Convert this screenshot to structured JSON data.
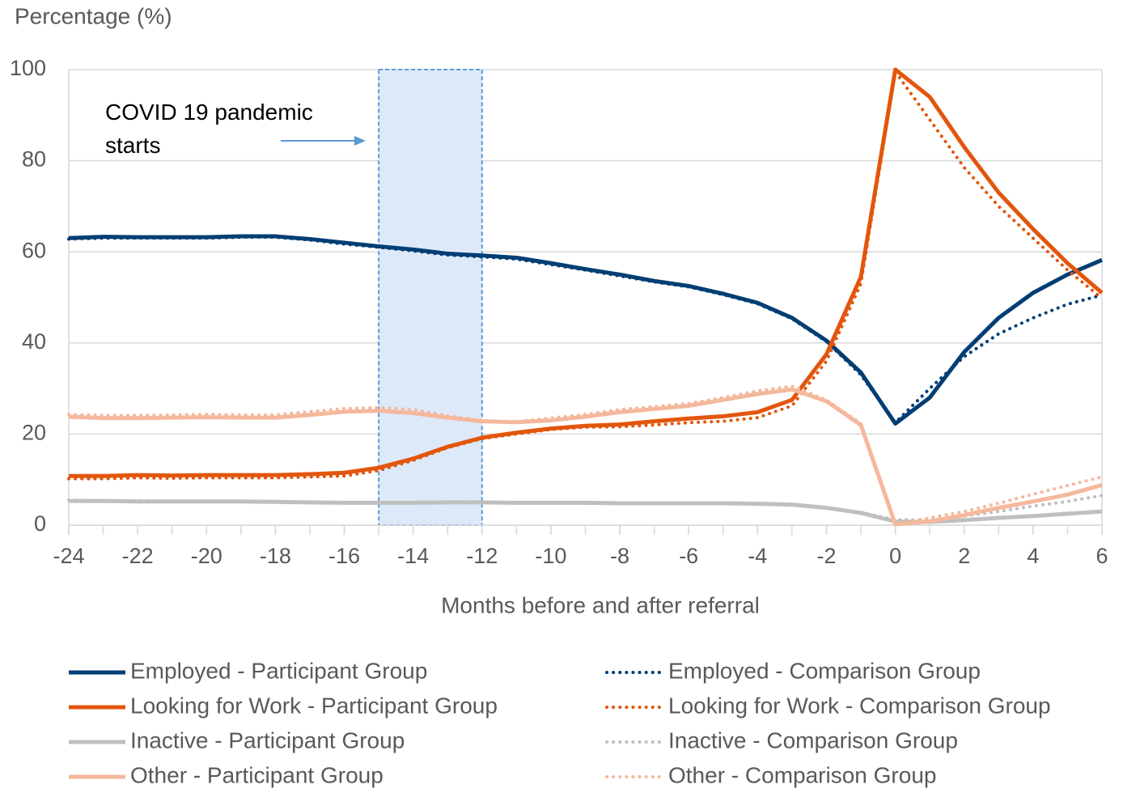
{
  "chart_data": {
    "type": "line",
    "y_label": "Percentage (%)",
    "x_label": "Months before and after referral",
    "annotation": {
      "text": "COVID 19 pandemic starts",
      "x_range": [
        -15,
        -12
      ]
    },
    "x": [
      -24,
      -23,
      -22,
      -21,
      -20,
      -19,
      -18,
      -17,
      -16,
      -15,
      -14,
      -13,
      -12,
      -11,
      -10,
      -9,
      -8,
      -7,
      -6,
      -5,
      -4,
      -3,
      -2,
      -1,
      0,
      1,
      2,
      3,
      4,
      5,
      6
    ],
    "xlim": [
      -24,
      6
    ],
    "xticks": [
      -24,
      -22,
      -20,
      -18,
      -16,
      -14,
      -12,
      -10,
      -8,
      -6,
      -4,
      -2,
      0,
      2,
      4,
      6
    ],
    "ylim": [
      0,
      100
    ],
    "yticks": [
      0,
      20,
      40,
      60,
      80,
      100
    ],
    "grid": true,
    "series": [
      {
        "name": "Employed - Participant Group",
        "color": "#003e74",
        "style": "solid",
        "values": [
          63,
          63.3,
          63.2,
          63.2,
          63.2,
          63.4,
          63.4,
          62.8,
          62,
          61.2,
          60.5,
          59.6,
          59.2,
          58.7,
          57.5,
          56.2,
          55,
          53.6,
          52.5,
          50.8,
          48.8,
          45.5,
          40.5,
          33.5,
          22.3,
          28,
          38,
          45.5,
          51,
          55,
          58.2
        ]
      },
      {
        "name": "Employed - Comparison Group",
        "color": "#003e74",
        "style": "dotted",
        "values": [
          62.8,
          63,
          63,
          63,
          63,
          63.2,
          63.2,
          62.6,
          61.7,
          61,
          60.2,
          59.3,
          58.9,
          58.4,
          57.2,
          56,
          54.7,
          53.4,
          52.3,
          50.6,
          48.6,
          45.3,
          40.3,
          33,
          22.5,
          30,
          37,
          42,
          45.5,
          48.5,
          50.5
        ]
      },
      {
        "name": "Looking for Work - Participant Group",
        "color": "#e2560c",
        "style": "solid",
        "values": [
          10.8,
          10.8,
          11,
          10.9,
          11,
          11,
          11,
          11.2,
          11.5,
          12.6,
          14.6,
          17.2,
          19.2,
          20.3,
          21.2,
          21.8,
          22.1,
          22.8,
          23.4,
          23.9,
          24.8,
          27.5,
          37.5,
          54.5,
          100,
          94,
          83,
          73,
          65,
          57.5,
          51
        ]
      },
      {
        "name": "Looking for Work - Comparison Group",
        "color": "#e2560c",
        "style": "dotted",
        "values": [
          10.2,
          10.2,
          10.4,
          10.3,
          10.4,
          10.4,
          10.4,
          10.6,
          10.8,
          12,
          14.2,
          17,
          19,
          20,
          21,
          21.5,
          21.6,
          22,
          22.5,
          22.8,
          23.6,
          26.2,
          36,
          53,
          99.5,
          89,
          78.5,
          70,
          63,
          56,
          49.8
        ]
      },
      {
        "name": "Inactive - Participant Group",
        "color": "#bfbfbf",
        "style": "solid",
        "values": [
          5.3,
          5.3,
          5.2,
          5.2,
          5.2,
          5.2,
          5.1,
          5,
          4.9,
          4.9,
          4.9,
          5,
          5,
          4.9,
          4.9,
          4.9,
          4.8,
          4.8,
          4.8,
          4.8,
          4.7,
          4.5,
          3.8,
          2.7,
          0.8,
          0.7,
          1.1,
          1.6,
          2,
          2.5,
          3
        ]
      },
      {
        "name": "Inactive - Comparison Group",
        "color": "#bfbfbf",
        "style": "dotted",
        "values": [
          5.5,
          5.4,
          5.4,
          5.3,
          5.3,
          5.3,
          5.2,
          5.1,
          5,
          5,
          5,
          5.1,
          5.1,
          5,
          5,
          5,
          4.9,
          4.9,
          4.9,
          4.9,
          4.8,
          4.6,
          3.9,
          2.8,
          1.2,
          1.1,
          2,
          3,
          4.2,
          5.2,
          6.5
        ]
      },
      {
        "name": "Other - Participant Group",
        "color": "#f4b89c",
        "style": "solid",
        "values": [
          23.8,
          23.5,
          23.5,
          23.6,
          23.7,
          23.6,
          23.6,
          24.2,
          24.9,
          25.1,
          24.6,
          23.6,
          22.8,
          22.6,
          23,
          23.8,
          24.8,
          25.5,
          26.2,
          27.5,
          28.8,
          29.8,
          27.2,
          22,
          0.2,
          0.8,
          2.2,
          3.8,
          5.2,
          6.7,
          8.8
        ]
      },
      {
        "name": "Other - Comparison Group",
        "color": "#f4b89c",
        "style": "dotted",
        "values": [
          24.3,
          24.1,
          24.1,
          24.2,
          24.3,
          24.2,
          24.2,
          24.9,
          25.6,
          25.8,
          25.4,
          24,
          23,
          22.7,
          23.5,
          24.3,
          25.4,
          26,
          26.7,
          28,
          29.5,
          30.5,
          27.5,
          22.3,
          0.3,
          1.6,
          3,
          4.8,
          6.8,
          8.7,
          10.6
        ]
      }
    ]
  }
}
